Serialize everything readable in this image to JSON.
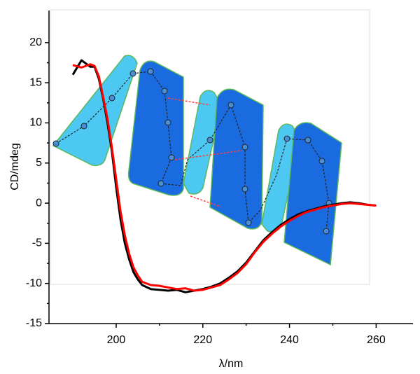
{
  "chart_data": {
    "type": "line",
    "x_label": "λ/nm",
    "y_label": "CD/mdeg",
    "x": [
      190,
      192,
      194,
      195,
      196,
      197,
      198,
      199,
      200,
      201,
      202,
      203,
      204,
      205,
      206,
      208,
      210,
      212,
      214,
      216,
      218,
      220,
      222,
      224,
      226,
      228,
      230,
      232,
      234,
      236,
      238,
      240,
      242,
      244,
      246,
      248,
      250,
      252,
      254,
      256,
      258,
      260
    ],
    "series": [
      {
        "color": "#000000",
        "values": [
          16.0,
          17.8,
          17.0,
          17.0,
          15.5,
          13.0,
          10.0,
          6.5,
          2.0,
          -2.0,
          -5.0,
          -7.0,
          -8.6,
          -9.5,
          -10.2,
          -10.7,
          -10.8,
          -10.9,
          -10.8,
          -11.1,
          -10.9,
          -10.7,
          -10.4,
          -10.0,
          -9.3,
          -8.5,
          -7.4,
          -6.0,
          -4.6,
          -3.6,
          -2.7,
          -2.0,
          -1.4,
          -1.0,
          -0.7,
          -0.4,
          -0.2,
          0.0,
          0.1,
          0.0,
          -0.2,
          -0.3
        ]
      },
      {
        "color": "#ff0000",
        "values": [
          17.2,
          16.9,
          17.3,
          17.1,
          15.8,
          13.2,
          10.5,
          7.0,
          3.0,
          -1.0,
          -4.0,
          -6.3,
          -8.0,
          -9.0,
          -9.8,
          -10.2,
          -10.3,
          -10.5,
          -10.7,
          -10.6,
          -10.9,
          -10.8,
          -10.5,
          -10.2,
          -9.5,
          -8.7,
          -7.6,
          -6.1,
          -4.8,
          -3.8,
          -2.9,
          -2.2,
          -1.6,
          -1.1,
          -0.8,
          -0.5,
          -0.3,
          -0.1,
          0.0,
          -0.1,
          -0.2,
          -0.3
        ]
      }
    ],
    "xlim": [
      184.5,
      268.5
    ],
    "xticks": [
      200,
      220,
      240,
      260
    ],
    "ylim": [
      -15,
      24
    ],
    "yticks": [
      -15,
      -10,
      -5,
      0,
      5,
      10,
      15,
      20
    ]
  }
}
